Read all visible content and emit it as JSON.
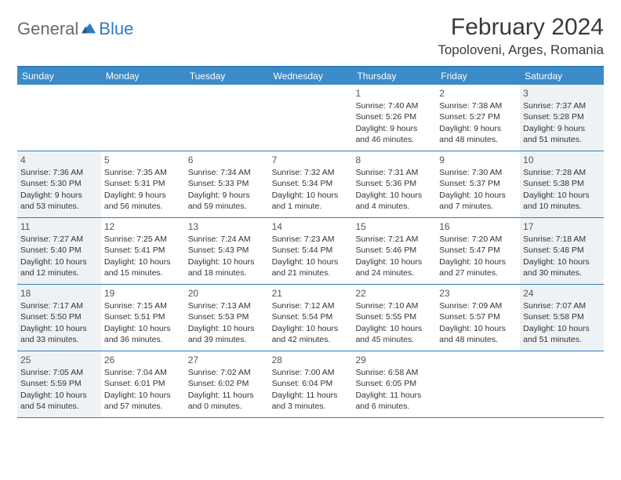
{
  "logo": {
    "general": "General",
    "blue": "Blue"
  },
  "title": "February 2024",
  "location": "Topoloveni, Arges, Romania",
  "colors": {
    "header_bar": "#3b8bc9",
    "border": "#2e7cbf",
    "shaded_bg": "#eef2f5",
    "text": "#333333",
    "logo_gray": "#6a6a6a",
    "logo_blue": "#2e7cbf"
  },
  "weekdays": [
    "Sunday",
    "Monday",
    "Tuesday",
    "Wednesday",
    "Thursday",
    "Friday",
    "Saturday"
  ],
  "weeks": [
    [
      {
        "empty": true
      },
      {
        "empty": true
      },
      {
        "empty": true
      },
      {
        "empty": true
      },
      {
        "num": "1",
        "sunrise": "Sunrise: 7:40 AM",
        "sunset": "Sunset: 5:26 PM",
        "day1": "Daylight: 9 hours",
        "day2": "and 46 minutes."
      },
      {
        "num": "2",
        "sunrise": "Sunrise: 7:38 AM",
        "sunset": "Sunset: 5:27 PM",
        "day1": "Daylight: 9 hours",
        "day2": "and 48 minutes."
      },
      {
        "num": "3",
        "sunrise": "Sunrise: 7:37 AM",
        "sunset": "Sunset: 5:28 PM",
        "day1": "Daylight: 9 hours",
        "day2": "and 51 minutes.",
        "shaded": true
      }
    ],
    [
      {
        "num": "4",
        "sunrise": "Sunrise: 7:36 AM",
        "sunset": "Sunset: 5:30 PM",
        "day1": "Daylight: 9 hours",
        "day2": "and 53 minutes.",
        "shaded": true
      },
      {
        "num": "5",
        "sunrise": "Sunrise: 7:35 AM",
        "sunset": "Sunset: 5:31 PM",
        "day1": "Daylight: 9 hours",
        "day2": "and 56 minutes."
      },
      {
        "num": "6",
        "sunrise": "Sunrise: 7:34 AM",
        "sunset": "Sunset: 5:33 PM",
        "day1": "Daylight: 9 hours",
        "day2": "and 59 minutes."
      },
      {
        "num": "7",
        "sunrise": "Sunrise: 7:32 AM",
        "sunset": "Sunset: 5:34 PM",
        "day1": "Daylight: 10 hours",
        "day2": "and 1 minute."
      },
      {
        "num": "8",
        "sunrise": "Sunrise: 7:31 AM",
        "sunset": "Sunset: 5:36 PM",
        "day1": "Daylight: 10 hours",
        "day2": "and 4 minutes."
      },
      {
        "num": "9",
        "sunrise": "Sunrise: 7:30 AM",
        "sunset": "Sunset: 5:37 PM",
        "day1": "Daylight: 10 hours",
        "day2": "and 7 minutes."
      },
      {
        "num": "10",
        "sunrise": "Sunrise: 7:28 AM",
        "sunset": "Sunset: 5:38 PM",
        "day1": "Daylight: 10 hours",
        "day2": "and 10 minutes.",
        "shaded": true
      }
    ],
    [
      {
        "num": "11",
        "sunrise": "Sunrise: 7:27 AM",
        "sunset": "Sunset: 5:40 PM",
        "day1": "Daylight: 10 hours",
        "day2": "and 12 minutes.",
        "shaded": true
      },
      {
        "num": "12",
        "sunrise": "Sunrise: 7:25 AM",
        "sunset": "Sunset: 5:41 PM",
        "day1": "Daylight: 10 hours",
        "day2": "and 15 minutes."
      },
      {
        "num": "13",
        "sunrise": "Sunrise: 7:24 AM",
        "sunset": "Sunset: 5:43 PM",
        "day1": "Daylight: 10 hours",
        "day2": "and 18 minutes."
      },
      {
        "num": "14",
        "sunrise": "Sunrise: 7:23 AM",
        "sunset": "Sunset: 5:44 PM",
        "day1": "Daylight: 10 hours",
        "day2": "and 21 minutes."
      },
      {
        "num": "15",
        "sunrise": "Sunrise: 7:21 AM",
        "sunset": "Sunset: 5:46 PM",
        "day1": "Daylight: 10 hours",
        "day2": "and 24 minutes."
      },
      {
        "num": "16",
        "sunrise": "Sunrise: 7:20 AM",
        "sunset": "Sunset: 5:47 PM",
        "day1": "Daylight: 10 hours",
        "day2": "and 27 minutes."
      },
      {
        "num": "17",
        "sunrise": "Sunrise: 7:18 AM",
        "sunset": "Sunset: 5:48 PM",
        "day1": "Daylight: 10 hours",
        "day2": "and 30 minutes.",
        "shaded": true
      }
    ],
    [
      {
        "num": "18",
        "sunrise": "Sunrise: 7:17 AM",
        "sunset": "Sunset: 5:50 PM",
        "day1": "Daylight: 10 hours",
        "day2": "and 33 minutes.",
        "shaded": true
      },
      {
        "num": "19",
        "sunrise": "Sunrise: 7:15 AM",
        "sunset": "Sunset: 5:51 PM",
        "day1": "Daylight: 10 hours",
        "day2": "and 36 minutes."
      },
      {
        "num": "20",
        "sunrise": "Sunrise: 7:13 AM",
        "sunset": "Sunset: 5:53 PM",
        "day1": "Daylight: 10 hours",
        "day2": "and 39 minutes."
      },
      {
        "num": "21",
        "sunrise": "Sunrise: 7:12 AM",
        "sunset": "Sunset: 5:54 PM",
        "day1": "Daylight: 10 hours",
        "day2": "and 42 minutes."
      },
      {
        "num": "22",
        "sunrise": "Sunrise: 7:10 AM",
        "sunset": "Sunset: 5:55 PM",
        "day1": "Daylight: 10 hours",
        "day2": "and 45 minutes."
      },
      {
        "num": "23",
        "sunrise": "Sunrise: 7:09 AM",
        "sunset": "Sunset: 5:57 PM",
        "day1": "Daylight: 10 hours",
        "day2": "and 48 minutes."
      },
      {
        "num": "24",
        "sunrise": "Sunrise: 7:07 AM",
        "sunset": "Sunset: 5:58 PM",
        "day1": "Daylight: 10 hours",
        "day2": "and 51 minutes.",
        "shaded": true
      }
    ],
    [
      {
        "num": "25",
        "sunrise": "Sunrise: 7:05 AM",
        "sunset": "Sunset: 5:59 PM",
        "day1": "Daylight: 10 hours",
        "day2": "and 54 minutes.",
        "shaded": true
      },
      {
        "num": "26",
        "sunrise": "Sunrise: 7:04 AM",
        "sunset": "Sunset: 6:01 PM",
        "day1": "Daylight: 10 hours",
        "day2": "and 57 minutes."
      },
      {
        "num": "27",
        "sunrise": "Sunrise: 7:02 AM",
        "sunset": "Sunset: 6:02 PM",
        "day1": "Daylight: 11 hours",
        "day2": "and 0 minutes."
      },
      {
        "num": "28",
        "sunrise": "Sunrise: 7:00 AM",
        "sunset": "Sunset: 6:04 PM",
        "day1": "Daylight: 11 hours",
        "day2": "and 3 minutes."
      },
      {
        "num": "29",
        "sunrise": "Sunrise: 6:58 AM",
        "sunset": "Sunset: 6:05 PM",
        "day1": "Daylight: 11 hours",
        "day2": "and 6 minutes."
      },
      {
        "empty": true
      },
      {
        "empty": true
      }
    ]
  ]
}
